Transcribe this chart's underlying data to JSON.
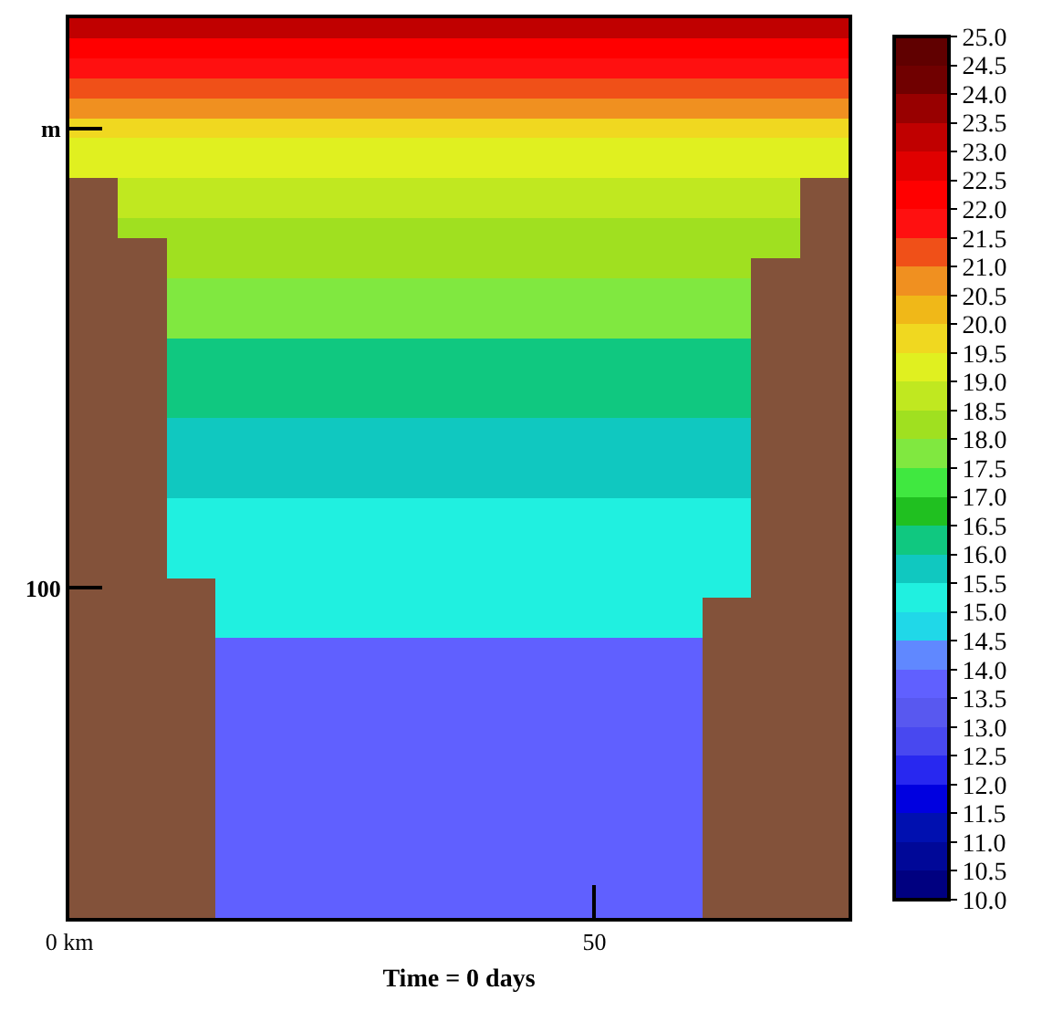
{
  "chart_data": {
    "type": "heatmap",
    "xlabel": "Time = 0 days",
    "xlim": [
      0,
      74.2
    ],
    "xticks": [
      {
        "value": 0,
        "label": "0 km"
      },
      50
    ],
    "y_categories": [
      null,
      null,
      null,
      null,
      null,
      "m",
      null,
      null,
      null,
      null,
      null,
      null,
      null,
      null,
      null,
      null,
      null,
      null,
      null,
      null,
      null,
      null,
      null,
      null,
      null,
      null,
      null,
      null,
      "100",
      null,
      null,
      null,
      null,
      null,
      null,
      null,
      null,
      null,
      null,
      null,
      null,
      null,
      null,
      null,
      null
    ],
    "clim": [
      10,
      25
    ],
    "cticks": [
      {
        "value": 10,
        "label": "10.0"
      },
      {
        "value": 10.5,
        "label": "10.5"
      },
      {
        "value": 11,
        "label": "11.0"
      },
      {
        "value": 11.5,
        "label": "11.5"
      },
      {
        "value": 12,
        "label": "12.0"
      },
      {
        "value": 12.5,
        "label": "12.5"
      },
      {
        "value": 13,
        "label": "13.0"
      },
      {
        "value": 13.5,
        "label": "13.5"
      },
      {
        "value": 14,
        "label": "14.0"
      },
      {
        "value": 14.5,
        "label": "14.5"
      },
      {
        "value": 15,
        "label": "15.0"
      },
      {
        "value": 15.5,
        "label": "15.5"
      },
      {
        "value": 16,
        "label": "16.0"
      },
      {
        "value": 16.5,
        "label": "16.5"
      },
      {
        "value": 17,
        "label": "17.0"
      },
      {
        "value": 17.5,
        "label": "17.5"
      },
      {
        "value": 18,
        "label": "18.0"
      },
      {
        "value": 18.5,
        "label": "18.5"
      },
      {
        "value": 19,
        "label": "19.0"
      },
      {
        "value": 19.5,
        "label": "19.5"
      },
      {
        "value": 20,
        "label": "20.0"
      },
      {
        "value": 20.5,
        "label": "20.5"
      },
      {
        "value": 21,
        "label": "21.0"
      },
      {
        "value": 21.5,
        "label": "21.5"
      },
      {
        "value": 22,
        "label": "22.0"
      },
      {
        "value": 22.5,
        "label": "22.5"
      },
      {
        "value": 23,
        "label": "23.0"
      },
      {
        "value": 23.5,
        "label": "23.5"
      },
      {
        "value": 24,
        "label": "24.0"
      },
      {
        "value": 24.5,
        "label": "24.5"
      },
      {
        "value": 25,
        "label": "25.0"
      }
    ],
    "colors": [
      "#000080",
      "#000898",
      "#0010b0",
      "#0000e0",
      "#2828f0",
      "#4848f0",
      "#5858f0",
      "#6060ff",
      "#6088ff",
      "#20d8e8",
      "#20f0e0",
      "#10c8c0",
      "#10c880",
      "#20c020",
      "#40e840",
      "#80e840",
      "#a0e020",
      "#c0e820",
      "#e0f020",
      "#f0d820",
      "#f0b818",
      "#f09020",
      "#f05018",
      "#ff1010",
      "#ff0000",
      "#e00000",
      "#c00000",
      "#980000",
      "#700000",
      "#600000"
    ],
    "cells": [
      [
        23.25,
        23.25,
        23.25,
        23.25,
        23.25,
        23.25,
        23.25,
        23.25,
        23.25,
        23.25,
        23.25,
        23.25,
        23.25,
        23.25,
        23.25,
        23.25
      ],
      [
        22.25,
        22.25,
        22.25,
        22.25,
        22.25,
        22.25,
        22.25,
        22.25,
        22.25,
        22.25,
        22.25,
        22.25,
        22.25,
        22.25,
        22.25,
        22.25
      ],
      [
        21.75,
        21.75,
        21.75,
        21.75,
        21.75,
        21.75,
        21.75,
        21.75,
        21.75,
        21.75,
        21.75,
        21.75,
        21.75,
        21.75,
        21.75,
        21.75
      ],
      [
        21.25,
        21.25,
        21.25,
        21.25,
        21.25,
        21.25,
        21.25,
        21.25,
        21.25,
        21.25,
        21.25,
        21.25,
        21.25,
        21.25,
        21.25,
        21.25
      ],
      [
        20.75,
        20.75,
        20.75,
        20.75,
        20.75,
        20.75,
        20.75,
        20.75,
        20.75,
        20.75,
        20.75,
        20.75,
        20.75,
        20.75,
        20.75,
        20.75
      ],
      [
        19.75,
        19.75,
        19.75,
        19.75,
        19.75,
        19.75,
        19.75,
        19.75,
        19.75,
        19.75,
        19.75,
        19.75,
        19.75,
        19.75,
        19.75,
        19.75
      ],
      [
        19.25,
        19.25,
        19.25,
        19.25,
        19.25,
        19.25,
        19.25,
        19.25,
        19.25,
        19.25,
        19.25,
        19.25,
        19.25,
        19.25,
        19.25,
        19.25
      ],
      [
        19.25,
        19.25,
        19.25,
        19.25,
        19.25,
        19.25,
        19.25,
        19.25,
        19.25,
        19.25,
        19.25,
        19.25,
        19.25,
        19.25,
        19.25,
        19.25
      ],
      [
        null,
        18.75,
        18.75,
        18.75,
        18.75,
        18.75,
        18.75,
        18.75,
        18.75,
        18.75,
        18.75,
        18.75,
        18.75,
        18.75,
        18.75,
        null
      ],
      [
        null,
        18.75,
        18.75,
        18.75,
        18.75,
        18.75,
        18.75,
        18.75,
        18.75,
        18.75,
        18.75,
        18.75,
        18.75,
        18.75,
        18.75,
        null
      ],
      [
        null,
        18.25,
        18.25,
        18.25,
        18.25,
        18.25,
        18.25,
        18.25,
        18.25,
        18.25,
        18.25,
        18.25,
        18.25,
        18.25,
        18.25,
        null
      ],
      [
        null,
        null,
        18.25,
        18.25,
        18.25,
        18.25,
        18.25,
        18.25,
        18.25,
        18.25,
        18.25,
        18.25,
        18.25,
        18.25,
        18.25,
        null
      ],
      [
        null,
        null,
        18.25,
        18.25,
        18.25,
        18.25,
        18.25,
        18.25,
        18.25,
        18.25,
        18.25,
        18.25,
        18.25,
        18.25,
        null,
        null
      ],
      [
        null,
        null,
        17.75,
        17.75,
        17.75,
        17.75,
        17.75,
        17.75,
        17.75,
        17.75,
        17.75,
        17.75,
        17.75,
        17.75,
        null,
        null
      ],
      [
        null,
        null,
        17.75,
        17.75,
        17.75,
        17.75,
        17.75,
        17.75,
        17.75,
        17.75,
        17.75,
        17.75,
        17.75,
        17.75,
        null,
        null
      ],
      [
        null,
        null,
        17.75,
        17.75,
        17.75,
        17.75,
        17.75,
        17.75,
        17.75,
        17.75,
        17.75,
        17.75,
        17.75,
        17.75,
        null,
        null
      ],
      [
        null,
        null,
        16.25,
        16.25,
        16.25,
        16.25,
        16.25,
        16.25,
        16.25,
        16.25,
        16.25,
        16.25,
        16.25,
        16.25,
        null,
        null
      ],
      [
        null,
        null,
        16.25,
        16.25,
        16.25,
        16.25,
        16.25,
        16.25,
        16.25,
        16.25,
        16.25,
        16.25,
        16.25,
        16.25,
        null,
        null
      ],
      [
        null,
        null,
        16.25,
        16.25,
        16.25,
        16.25,
        16.25,
        16.25,
        16.25,
        16.25,
        16.25,
        16.25,
        16.25,
        16.25,
        null,
        null
      ],
      [
        null,
        null,
        16.25,
        16.25,
        16.25,
        16.25,
        16.25,
        16.25,
        16.25,
        16.25,
        16.25,
        16.25,
        16.25,
        16.25,
        null,
        null
      ],
      [
        null,
        null,
        15.75,
        15.75,
        15.75,
        15.75,
        15.75,
        15.75,
        15.75,
        15.75,
        15.75,
        15.75,
        15.75,
        15.75,
        null,
        null
      ],
      [
        null,
        null,
        15.75,
        15.75,
        15.75,
        15.75,
        15.75,
        15.75,
        15.75,
        15.75,
        15.75,
        15.75,
        15.75,
        15.75,
        null,
        null
      ],
      [
        null,
        null,
        15.75,
        15.75,
        15.75,
        15.75,
        15.75,
        15.75,
        15.75,
        15.75,
        15.75,
        15.75,
        15.75,
        15.75,
        null,
        null
      ],
      [
        null,
        null,
        15.75,
        15.75,
        15.75,
        15.75,
        15.75,
        15.75,
        15.75,
        15.75,
        15.75,
        15.75,
        15.75,
        15.75,
        null,
        null
      ],
      [
        null,
        null,
        15.25,
        15.25,
        15.25,
        15.25,
        15.25,
        15.25,
        15.25,
        15.25,
        15.25,
        15.25,
        15.25,
        15.25,
        null,
        null
      ],
      [
        null,
        null,
        15.25,
        15.25,
        15.25,
        15.25,
        15.25,
        15.25,
        15.25,
        15.25,
        15.25,
        15.25,
        15.25,
        15.25,
        null,
        null
      ],
      [
        null,
        null,
        15.25,
        15.25,
        15.25,
        15.25,
        15.25,
        15.25,
        15.25,
        15.25,
        15.25,
        15.25,
        15.25,
        15.25,
        null,
        null
      ],
      [
        null,
        null,
        15.25,
        15.25,
        15.25,
        15.25,
        15.25,
        15.25,
        15.25,
        15.25,
        15.25,
        15.25,
        15.25,
        15.25,
        null,
        null
      ],
      [
        null,
        null,
        null,
        15.25,
        15.25,
        15.25,
        15.25,
        15.25,
        15.25,
        15.25,
        15.25,
        15.25,
        15.25,
        15.25,
        null,
        null
      ],
      [
        null,
        null,
        null,
        15.25,
        15.25,
        15.25,
        15.25,
        15.25,
        15.25,
        15.25,
        15.25,
        15.25,
        15.25,
        null,
        null,
        null
      ],
      [
        null,
        null,
        null,
        15.25,
        15.25,
        15.25,
        15.25,
        15.25,
        15.25,
        15.25,
        15.25,
        15.25,
        15.25,
        null,
        null,
        null
      ],
      [
        null,
        null,
        null,
        13.75,
        13.75,
        13.75,
        13.75,
        13.75,
        13.75,
        13.75,
        13.75,
        13.75,
        13.75,
        null,
        null,
        null
      ],
      [
        null,
        null,
        null,
        13.75,
        13.75,
        13.75,
        13.75,
        13.75,
        13.75,
        13.75,
        13.75,
        13.75,
        13.75,
        null,
        null,
        null
      ],
      [
        null,
        null,
        null,
        13.75,
        13.75,
        13.75,
        13.75,
        13.75,
        13.75,
        13.75,
        13.75,
        13.75,
        13.75,
        null,
        null,
        null
      ],
      [
        null,
        null,
        null,
        13.75,
        13.75,
        13.75,
        13.75,
        13.75,
        13.75,
        13.75,
        13.75,
        13.75,
        13.75,
        null,
        null,
        null
      ],
      [
        null,
        null,
        null,
        13.75,
        13.75,
        13.75,
        13.75,
        13.75,
        13.75,
        13.75,
        13.75,
        13.75,
        13.75,
        null,
        null,
        null
      ],
      [
        null,
        null,
        null,
        13.75,
        13.75,
        13.75,
        13.75,
        13.75,
        13.75,
        13.75,
        13.75,
        13.75,
        13.75,
        null,
        null,
        null
      ],
      [
        null,
        null,
        null,
        13.75,
        13.75,
        13.75,
        13.75,
        13.75,
        13.75,
        13.75,
        13.75,
        13.75,
        13.75,
        null,
        null,
        null
      ],
      [
        null,
        null,
        null,
        13.75,
        13.75,
        13.75,
        13.75,
        13.75,
        13.75,
        13.75,
        13.75,
        13.75,
        13.75,
        null,
        null,
        null
      ],
      [
        null,
        null,
        null,
        13.75,
        13.75,
        13.75,
        13.75,
        13.75,
        13.75,
        13.75,
        13.75,
        13.75,
        13.75,
        null,
        null,
        null
      ],
      [
        null,
        null,
        null,
        13.75,
        13.75,
        13.75,
        13.75,
        13.75,
        13.75,
        13.75,
        13.75,
        13.75,
        13.75,
        null,
        null,
        null
      ],
      [
        null,
        null,
        null,
        13.75,
        13.75,
        13.75,
        13.75,
        13.75,
        13.75,
        13.75,
        13.75,
        13.75,
        13.75,
        null,
        null,
        null
      ],
      [
        null,
        null,
        null,
        13.75,
        13.75,
        13.75,
        13.75,
        13.75,
        13.75,
        13.75,
        13.75,
        13.75,
        13.75,
        null,
        null,
        null
      ],
      [
        null,
        null,
        null,
        13.75,
        13.75,
        13.75,
        13.75,
        13.75,
        13.75,
        13.75,
        13.75,
        13.75,
        13.75,
        null,
        null,
        null
      ],
      [
        null,
        null,
        null,
        13.75,
        13.75,
        13.75,
        13.75,
        13.75,
        13.75,
        13.75,
        13.75,
        13.75,
        13.75,
        null,
        null,
        null
      ]
    ]
  }
}
